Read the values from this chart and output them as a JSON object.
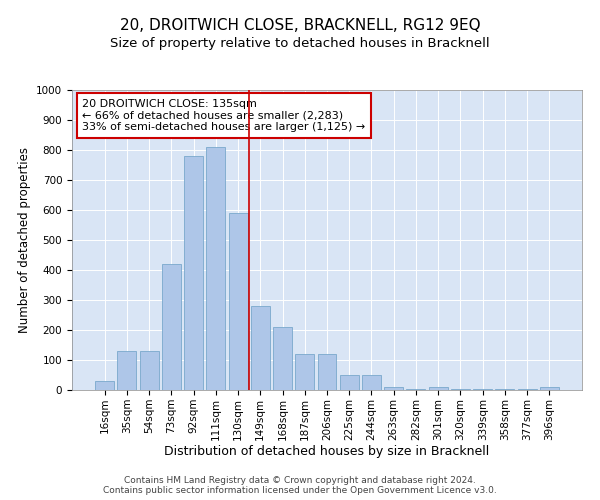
{
  "title": "20, DROITWICH CLOSE, BRACKNELL, RG12 9EQ",
  "subtitle": "Size of property relative to detached houses in Bracknell",
  "xlabel": "Distribution of detached houses by size in Bracknell",
  "ylabel": "Number of detached properties",
  "categories": [
    "16sqm",
    "35sqm",
    "54sqm",
    "73sqm",
    "92sqm",
    "111sqm",
    "130sqm",
    "149sqm",
    "168sqm",
    "187sqm",
    "206sqm",
    "225sqm",
    "244sqm",
    "263sqm",
    "282sqm",
    "301sqm",
    "320sqm",
    "339sqm",
    "358sqm",
    "377sqm",
    "396sqm"
  ],
  "values": [
    30,
    130,
    130,
    420,
    780,
    810,
    590,
    280,
    210,
    120,
    120,
    50,
    50,
    10,
    2,
    10,
    2,
    2,
    2,
    2,
    10
  ],
  "bar_color": "#aec6e8",
  "bar_edge_color": "#7aa8cc",
  "vline_x_index": 6.5,
  "vline_color": "#cc0000",
  "annotation_text": "20 DROITWICH CLOSE: 135sqm\n← 66% of detached houses are smaller (2,283)\n33% of semi-detached houses are larger (1,125) →",
  "annotation_box_color": "#ffffff",
  "annotation_box_edge_color": "#cc0000",
  "ylim": [
    0,
    1000
  ],
  "yticks": [
    0,
    100,
    200,
    300,
    400,
    500,
    600,
    700,
    800,
    900,
    1000
  ],
  "background_color": "#d9e5f5",
  "footer_line1": "Contains HM Land Registry data © Crown copyright and database right 2024.",
  "footer_line2": "Contains public sector information licensed under the Open Government Licence v3.0.",
  "title_fontsize": 11,
  "subtitle_fontsize": 9.5,
  "xlabel_fontsize": 9,
  "ylabel_fontsize": 8.5,
  "tick_fontsize": 7.5,
  "annot_fontsize": 8,
  "footer_fontsize": 6.5
}
